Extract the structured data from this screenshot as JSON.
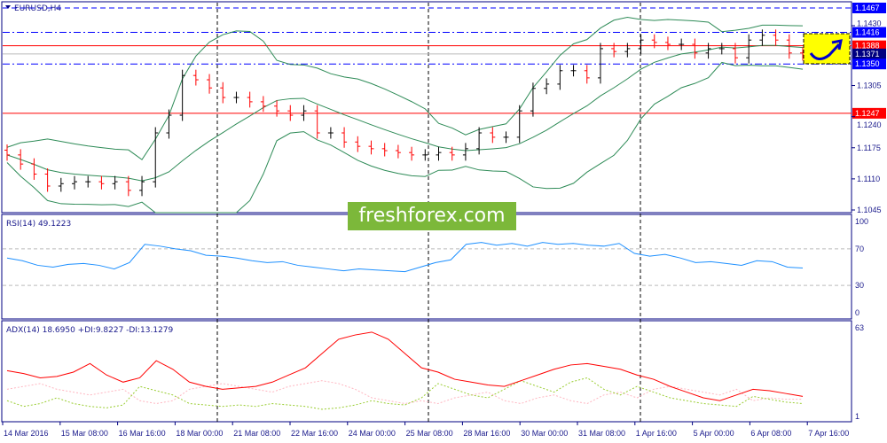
{
  "chart_data": {
    "type": "candlestick",
    "symbol_label": "EURUSD,H4",
    "price_axis": {
      "ticks": [
        "1.1430",
        "1.1305",
        "1.1240",
        "1.1175",
        "1.1110",
        "1.1045"
      ],
      "range": [
        1.1045,
        1.1467
      ]
    },
    "price_levels": [
      {
        "value": 1.1467,
        "label": "1.1467",
        "color": "#0000ff",
        "style": "dashed"
      },
      {
        "value": 1.1416,
        "label": "1.1416",
        "color": "#0000ff",
        "style": "dashdot"
      },
      {
        "value": 1.1388,
        "label": "1.1388",
        "color": "#ff0000",
        "style": "solid"
      },
      {
        "value": 1.1371,
        "label": "1.1371",
        "color": "#000080",
        "style": "solid"
      },
      {
        "value": 1.135,
        "label": "1.1350",
        "color": "#0000ff",
        "style": "dashdot"
      },
      {
        "value": 1.1247,
        "label": "1.1247",
        "color": "#ff0000",
        "style": "solid"
      }
    ],
    "closes": [
      1.116,
      1.1141,
      1.112,
      1.1095,
      1.11,
      1.1104,
      1.1104,
      1.11,
      1.1104,
      1.1086,
      1.1104,
      1.1206,
      1.1243,
      1.1326,
      1.1317,
      1.13,
      1.128,
      1.128,
      1.1271,
      1.1262,
      1.1252,
      1.1243,
      1.1252,
      1.1206,
      1.1206,
      1.1187,
      1.1178,
      1.1173,
      1.1169,
      1.1165,
      1.116,
      1.116,
      1.1165,
      1.116,
      1.1173,
      1.1206,
      1.1197,
      1.1197,
      1.1252,
      1.1299,
      1.1308,
      1.1336,
      1.1336,
      1.1321,
      1.1382,
      1.1376,
      1.1382,
      1.14,
      1.1395,
      1.1391,
      1.1391,
      1.1373,
      1.1382,
      1.1382,
      1.1363,
      1.14,
      1.141,
      1.14,
      1.1373,
      1.1369
    ],
    "x_axis": {
      "ticks": [
        "14 Mar 2016",
        "15 Mar 08:00",
        "16 Mar 16:00",
        "18 Mar 00:00",
        "21 Mar 08:00",
        "22 Mar 16:00",
        "24 Mar 00:00",
        "25 Mar 08:00",
        "28 Mar 16:00",
        "30 Mar 00:00",
        "31 Mar 08:00",
        "1 Apr 16:00",
        "5 Apr 00:00",
        "6 Apr 08:00",
        "7 Apr 16:00"
      ]
    },
    "indicators": {
      "rsi": {
        "label": "RSI(14) 49.1223",
        "levels": [
          70,
          30
        ],
        "ticks": [
          "100",
          "70",
          "30",
          "0"
        ],
        "color": "#1e90ff",
        "values": [
          60,
          57,
          52,
          50,
          53,
          54,
          52,
          48,
          55,
          75,
          73,
          70,
          68,
          63,
          62,
          60,
          57,
          55,
          56,
          52,
          50,
          48,
          46,
          48,
          47,
          46,
          45,
          50,
          55,
          58,
          75,
          77,
          74,
          76,
          73,
          77,
          75,
          76,
          74,
          73,
          76,
          65,
          62,
          64,
          60,
          55,
          56,
          54,
          52,
          57,
          56,
          50,
          49
        ]
      },
      "adx": {
        "label": "ADX(14) 18.6950 +DI:9.8227 -DI:13.1279",
        "ticks": [
          "63",
          "1"
        ],
        "adx_values": [
          33,
          31,
          28,
          29,
          32,
          38,
          30,
          25,
          28,
          40,
          34,
          25,
          22,
          20,
          21,
          22,
          25,
          30,
          35,
          45,
          55,
          58,
          60,
          55,
          45,
          35,
          32,
          27,
          25,
          23,
          22,
          26,
          30,
          34,
          37,
          38,
          36,
          34,
          30,
          27,
          22,
          18,
          14,
          12,
          16,
          20,
          19,
          17,
          15
        ],
        "plus_di_values": [
          12,
          8,
          10,
          14,
          10,
          8,
          7,
          9,
          22,
          19,
          16,
          10,
          9,
          8,
          9,
          8,
          10,
          9,
          8,
          6,
          7,
          9,
          12,
          10,
          9,
          14,
          24,
          20,
          16,
          14,
          20,
          26,
          22,
          18,
          25,
          28,
          20,
          16,
          22,
          18,
          14,
          12,
          10,
          9,
          8,
          15,
          13,
          11,
          10
        ],
        "minus_di_values": [
          20,
          22,
          24,
          20,
          18,
          16,
          18,
          20,
          12,
          10,
          12,
          20,
          22,
          24,
          22,
          20,
          18,
          22,
          24,
          26,
          24,
          20,
          14,
          12,
          10,
          12,
          10,
          14,
          16,
          18,
          12,
          10,
          14,
          16,
          12,
          10,
          16,
          18,
          14,
          20,
          22,
          20,
          18,
          16,
          20,
          12,
          14,
          13,
          13
        ],
        "adx_color": "#ff0000",
        "plus_di_color": "#9acd32",
        "minus_di_color": "#ffb6c1"
      }
    },
    "bollinger_color": "#2e8b57",
    "bull_color": "#000000",
    "bear_color": "#ff0000"
  },
  "watermark": "freshforex.com"
}
